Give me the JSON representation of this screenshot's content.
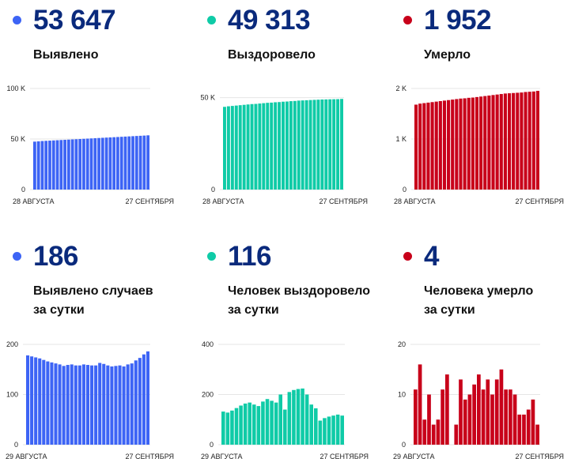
{
  "colors": {
    "blue": "#3d64f5",
    "teal": "#0fcba7",
    "red": "#c8001a",
    "number": "#0a2a7c"
  },
  "panels": [
    {
      "value": "53 647",
      "label_lines": [
        "Выявлено"
      ],
      "color": "blue"
    },
    {
      "value": "49 313",
      "label_lines": [
        "Выздоровело"
      ],
      "color": "teal"
    },
    {
      "value": "1 952",
      "label_lines": [
        "Умерло"
      ],
      "color": "red"
    },
    {
      "value": "186",
      "label_lines": [
        "Выявлено случаев",
        "за сутки"
      ],
      "color": "blue"
    },
    {
      "value": "116",
      "label_lines": [
        "Человек выздоровело",
        "за сутки"
      ],
      "color": "teal"
    },
    {
      "value": "4",
      "label_lines": [
        "Человека умерло",
        "за сутки"
      ],
      "color": "red"
    }
  ],
  "chart_data": [
    {
      "type": "bar",
      "title": "",
      "x_start_label": "28 АВГУСТА",
      "x_end_label": "27 СЕНТЯБРЯ",
      "ylim": [
        0,
        100000
      ],
      "yticks": [
        0,
        50000,
        100000
      ],
      "ytick_labels": [
        "0",
        "50 K",
        "100 K"
      ],
      "values": [
        47400,
        47700,
        48000,
        48200,
        48400,
        48600,
        48800,
        49000,
        49200,
        49400,
        49600,
        49800,
        50000,
        50200,
        50400,
        50600,
        50800,
        51000,
        51200,
        51400,
        51600,
        51800,
        52000,
        52200,
        52400,
        52600,
        52800,
        53000,
        53200,
        53400,
        53647
      ]
    },
    {
      "type": "bar",
      "title": "",
      "x_start_label": "28 АВГУСТА",
      "x_end_label": "27 СЕНТЯБРЯ",
      "ylim": [
        0,
        55000
      ],
      "yticks": [
        0,
        50000
      ],
      "ytick_labels": [
        "0",
        "50 K"
      ],
      "values": [
        45000,
        45300,
        45500,
        45700,
        45900,
        46100,
        46300,
        46500,
        46600,
        46800,
        47000,
        47200,
        47300,
        47500,
        47600,
        47800,
        47900,
        48100,
        48200,
        48400,
        48500,
        48600,
        48700,
        48800,
        48900,
        49000,
        49050,
        49100,
        49150,
        49200,
        49313
      ]
    },
    {
      "type": "bar",
      "title": "",
      "x_start_label": "28 АВГУСТА",
      "x_end_label": "27 СЕНТЯБРЯ",
      "ylim": [
        0,
        2000
      ],
      "yticks": [
        0,
        1000,
        2000
      ],
      "ytick_labels": [
        "0",
        "1 K",
        "2 K"
      ],
      "values": [
        1680,
        1700,
        1710,
        1720,
        1730,
        1740,
        1750,
        1760,
        1770,
        1780,
        1790,
        1800,
        1805,
        1815,
        1820,
        1830,
        1840,
        1850,
        1860,
        1870,
        1880,
        1890,
        1900,
        1905,
        1910,
        1915,
        1920,
        1930,
        1935,
        1940,
        1952
      ]
    },
    {
      "type": "bar",
      "title": "",
      "x_start_label": "29 АВГУСТА",
      "x_end_label": "27 СЕНТЯБРЯ",
      "ylim": [
        0,
        200
      ],
      "yticks": [
        0,
        100,
        200
      ],
      "ytick_labels": [
        "0",
        "100",
        "200"
      ],
      "values": [
        178,
        176,
        174,
        172,
        169,
        166,
        164,
        162,
        160,
        157,
        159,
        160,
        158,
        158,
        160,
        159,
        158,
        158,
        163,
        161,
        158,
        156,
        157,
        158,
        156,
        160,
        162,
        168,
        173,
        180,
        186
      ]
    },
    {
      "type": "bar",
      "title": "",
      "x_start_label": "29 АВГУСТА",
      "x_end_label": "27 СЕНТЯБРЯ",
      "ylim": [
        0,
        400
      ],
      "yticks": [
        0,
        200,
        400
      ],
      "ytick_labels": [
        "0",
        "200",
        "400"
      ],
      "values": [
        132,
        128,
        136,
        146,
        156,
        164,
        168,
        160,
        154,
        172,
        182,
        175,
        168,
        200,
        140,
        210,
        218,
        222,
        224,
        200,
        160,
        145,
        96,
        106,
        112,
        116,
        120,
        116
      ]
    },
    {
      "type": "bar",
      "title": "",
      "x_start_label": "29 АВГУСТА",
      "x_end_label": "27 СЕНТЯБРЯ",
      "ylim": [
        0,
        20
      ],
      "yticks": [
        0,
        10,
        20
      ],
      "ytick_labels": [
        "0",
        "10",
        "20"
      ],
      "values": [
        11,
        16,
        5,
        10,
        4,
        5,
        11,
        14,
        0,
        4,
        13,
        9,
        10,
        12,
        14,
        11,
        13,
        10,
        13,
        15,
        11,
        11,
        10,
        6,
        6,
        7,
        9,
        4
      ]
    }
  ]
}
